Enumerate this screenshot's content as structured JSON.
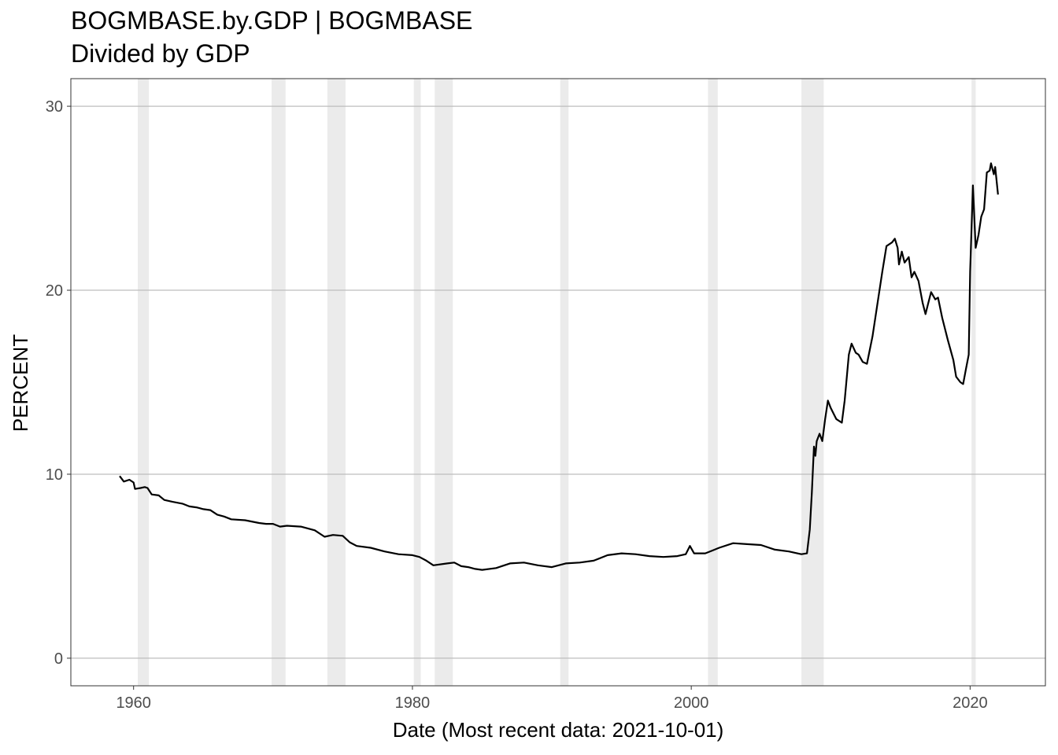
{
  "chart_data": {
    "type": "line",
    "title": "BOGMBASE.by.GDP | BOGMBASE",
    "subtitle": "Divided by GDP",
    "xlabel": "Date (Most recent data: 2021-10-01)",
    "ylabel": "PERCENT",
    "xlim": [
      1955.5,
      2025.4
    ],
    "ylim": [
      -1.5,
      31.5
    ],
    "x_ticks": [
      1960,
      1980,
      2000,
      2020
    ],
    "y_ticks": [
      0,
      10,
      20,
      30
    ],
    "grid": true,
    "recessions": [
      [
        1960.3,
        1961.1
      ],
      [
        1969.9,
        1970.9
      ],
      [
        1973.9,
        1975.2
      ],
      [
        1980.1,
        1980.6
      ],
      [
        1981.6,
        1982.9
      ],
      [
        1990.6,
        1991.2
      ],
      [
        2001.2,
        2001.9
      ],
      [
        2007.9,
        2009.5
      ],
      [
        2020.1,
        2020.4
      ]
    ],
    "series": [
      {
        "color": "#000000",
        "points": [
          [
            1959.0,
            9.9
          ],
          [
            1959.3,
            9.6
          ],
          [
            1959.7,
            9.7
          ],
          [
            1960.0,
            9.55
          ],
          [
            1960.1,
            9.2
          ],
          [
            1960.5,
            9.25
          ],
          [
            1960.8,
            9.3
          ],
          [
            1961.0,
            9.25
          ],
          [
            1961.3,
            8.9
          ],
          [
            1961.8,
            8.85
          ],
          [
            1962.2,
            8.6
          ],
          [
            1962.8,
            8.5
          ],
          [
            1963.5,
            8.4
          ],
          [
            1964.0,
            8.25
          ],
          [
            1964.5,
            8.2
          ],
          [
            1965.0,
            8.1
          ],
          [
            1965.5,
            8.05
          ],
          [
            1966.0,
            7.8
          ],
          [
            1966.5,
            7.7
          ],
          [
            1967.0,
            7.55
          ],
          [
            1968.0,
            7.5
          ],
          [
            1969.0,
            7.35
          ],
          [
            1969.5,
            7.3
          ],
          [
            1970.0,
            7.3
          ],
          [
            1970.5,
            7.15
          ],
          [
            1971.0,
            7.2
          ],
          [
            1972.0,
            7.15
          ],
          [
            1973.0,
            6.95
          ],
          [
            1973.7,
            6.6
          ],
          [
            1974.3,
            6.7
          ],
          [
            1975.0,
            6.65
          ],
          [
            1975.5,
            6.3
          ],
          [
            1976.0,
            6.1
          ],
          [
            1977.0,
            6.0
          ],
          [
            1978.0,
            5.8
          ],
          [
            1979.0,
            5.65
          ],
          [
            1980.0,
            5.6
          ],
          [
            1980.5,
            5.5
          ],
          [
            1981.0,
            5.3
          ],
          [
            1981.5,
            5.05
          ],
          [
            1982.5,
            5.15
          ],
          [
            1983.0,
            5.2
          ],
          [
            1983.5,
            5.0
          ],
          [
            1984.0,
            4.95
          ],
          [
            1984.5,
            4.85
          ],
          [
            1985.0,
            4.8
          ],
          [
            1986.0,
            4.9
          ],
          [
            1987.0,
            5.15
          ],
          [
            1988.0,
            5.2
          ],
          [
            1989.0,
            5.05
          ],
          [
            1990.0,
            4.95
          ],
          [
            1991.0,
            5.15
          ],
          [
            1992.0,
            5.2
          ],
          [
            1993.0,
            5.3
          ],
          [
            1994.0,
            5.6
          ],
          [
            1995.0,
            5.7
          ],
          [
            1996.0,
            5.65
          ],
          [
            1997.0,
            5.55
          ],
          [
            1998.0,
            5.5
          ],
          [
            1999.0,
            5.55
          ],
          [
            1999.6,
            5.65
          ],
          [
            1999.9,
            6.1
          ],
          [
            2000.2,
            5.7
          ],
          [
            2001.0,
            5.7
          ],
          [
            2001.5,
            5.85
          ],
          [
            2002.0,
            6.0
          ],
          [
            2003.0,
            6.25
          ],
          [
            2004.0,
            6.2
          ],
          [
            2005.0,
            6.15
          ],
          [
            2006.0,
            5.9
          ],
          [
            2007.0,
            5.8
          ],
          [
            2007.9,
            5.65
          ],
          [
            2008.3,
            5.7
          ],
          [
            2008.5,
            7.0
          ],
          [
            2008.65,
            9.0
          ],
          [
            2008.8,
            11.5
          ],
          [
            2008.9,
            11.0
          ],
          [
            2009.0,
            11.8
          ],
          [
            2009.2,
            12.2
          ],
          [
            2009.4,
            11.8
          ],
          [
            2009.6,
            13.0
          ],
          [
            2009.8,
            14.0
          ],
          [
            2010.0,
            13.6
          ],
          [
            2010.4,
            13.0
          ],
          [
            2010.8,
            12.8
          ],
          [
            2011.0,
            14.0
          ],
          [
            2011.3,
            16.5
          ],
          [
            2011.5,
            17.1
          ],
          [
            2011.8,
            16.6
          ],
          [
            2012.0,
            16.5
          ],
          [
            2012.3,
            16.1
          ],
          [
            2012.6,
            16.0
          ],
          [
            2013.0,
            17.5
          ],
          [
            2013.3,
            19.0
          ],
          [
            2013.7,
            21.0
          ],
          [
            2014.0,
            22.4
          ],
          [
            2014.4,
            22.6
          ],
          [
            2014.6,
            22.8
          ],
          [
            2014.8,
            22.3
          ],
          [
            2014.9,
            21.4
          ],
          [
            2015.1,
            22.1
          ],
          [
            2015.3,
            21.5
          ],
          [
            2015.6,
            21.8
          ],
          [
            2015.8,
            20.7
          ],
          [
            2016.0,
            21.0
          ],
          [
            2016.3,
            20.5
          ],
          [
            2016.6,
            19.3
          ],
          [
            2016.8,
            18.7
          ],
          [
            2017.0,
            19.3
          ],
          [
            2017.2,
            19.9
          ],
          [
            2017.5,
            19.5
          ],
          [
            2017.7,
            19.6
          ],
          [
            2018.0,
            18.5
          ],
          [
            2018.4,
            17.3
          ],
          [
            2018.8,
            16.2
          ],
          [
            2019.0,
            15.3
          ],
          [
            2019.3,
            15.0
          ],
          [
            2019.5,
            14.9
          ],
          [
            2019.7,
            15.7
          ],
          [
            2019.9,
            16.5
          ],
          [
            2020.0,
            21.0
          ],
          [
            2020.2,
            25.7
          ],
          [
            2020.4,
            22.3
          ],
          [
            2020.6,
            23.0
          ],
          [
            2020.8,
            24.0
          ],
          [
            2021.0,
            24.4
          ],
          [
            2021.2,
            26.4
          ],
          [
            2021.4,
            26.5
          ],
          [
            2021.5,
            26.9
          ],
          [
            2021.7,
            26.3
          ],
          [
            2021.8,
            26.7
          ],
          [
            2022.0,
            25.2
          ]
        ]
      }
    ]
  }
}
